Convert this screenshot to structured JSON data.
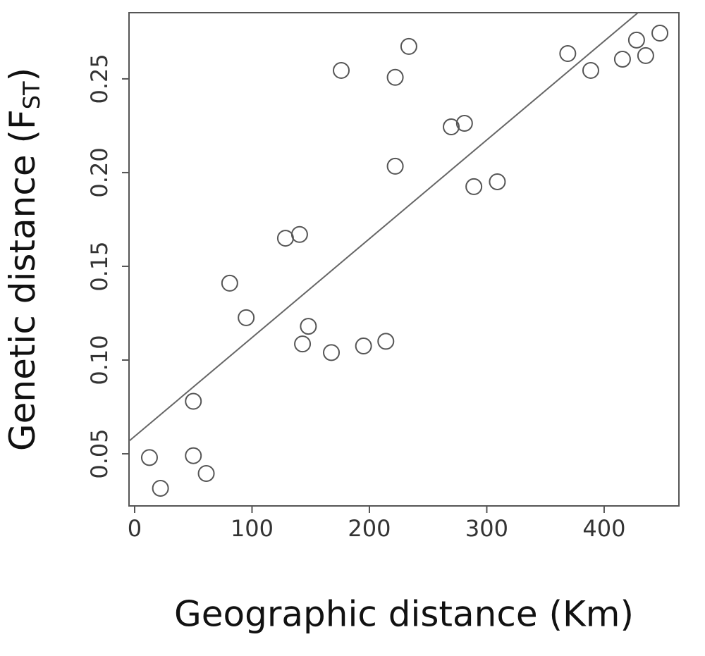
{
  "chart_data": {
    "type": "scatter",
    "x_label": "Geographic distance (Km)",
    "y_label": [
      "Genetic distance (F",
      "ST",
      ")"
    ],
    "x": [
      12.6,
      22,
      50,
      50,
      61,
      81,
      95,
      128.5,
      140.5,
      143,
      148,
      167.6,
      176,
      195,
      214,
      222,
      222,
      233.6,
      269.7,
      281,
      289,
      309,
      369,
      388.6,
      415.6,
      427.6,
      435.4,
      447.5
    ],
    "values": [
      0.048,
      0.0316,
      0.078,
      0.049,
      0.0395,
      0.141,
      0.1226,
      0.165,
      0.167,
      0.1086,
      0.118,
      0.104,
      0.2545,
      0.1075,
      0.11,
      0.2508,
      0.2034,
      0.2673,
      0.2244,
      0.2263,
      0.1925,
      0.1951,
      0.2635,
      0.2545,
      0.2605,
      0.2707,
      0.2624,
      0.2744
    ],
    "color": "#555555",
    "fit": {
      "intercept": 0.0593,
      "slope": 0.000527,
      "color": "#666666"
    },
    "xlim": [
      -4.8,
      463.7
    ],
    "ylim": [
      0.0222,
      0.2853
    ],
    "xticks": [
      0,
      100,
      200,
      300,
      400
    ],
    "yticks": [
      0.05,
      {
        "value": 0.1,
        "label": "0.10"
      },
      0.15,
      {
        "value": 0.2,
        "label": "0.20"
      },
      0.25
    ]
  }
}
